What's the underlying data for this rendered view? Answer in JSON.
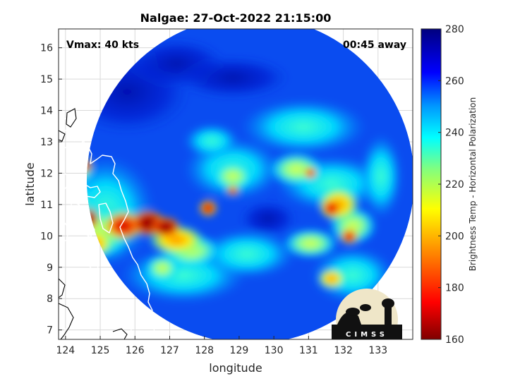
{
  "title": "Nalgae: 27-Oct-2022 21:15:00",
  "vmax_label": "Vmax: 40 kts",
  "time_away_label": "00:45 away",
  "xlabel": "longitude",
  "ylabel": "latitude",
  "colorbar_label": "Brightness Temp - Horizontal Polarization",
  "logo_text": "CIMSS",
  "chart_data": {
    "type": "heatmap",
    "x_ticks": [
      "124",
      "125",
      "126",
      "127",
      "128",
      "129",
      "130",
      "131",
      "132",
      "133"
    ],
    "y_ticks": [
      "7",
      "8",
      "9",
      "10",
      "11",
      "12",
      "13",
      "14",
      "15",
      "16"
    ],
    "xlim": [
      123.8,
      134.0
    ],
    "ylim": [
      6.7,
      16.6
    ],
    "colorbar": {
      "ticks": [
        "160",
        "180",
        "200",
        "220",
        "240",
        "260",
        "280"
      ],
      "range": [
        160,
        280
      ],
      "colormap": "jet"
    },
    "swath_background_value": 262,
    "features": [
      {
        "lon": 126.2,
        "lat": 10.4,
        "value": 165
      },
      {
        "lon": 126.7,
        "lat": 10.3,
        "value": 168
      },
      {
        "lon": 124.6,
        "lat": 10.6,
        "value": 175
      },
      {
        "lon": 124.4,
        "lat": 12.3,
        "value": 185
      },
      {
        "lon": 128.1,
        "lat": 11.0,
        "value": 182
      },
      {
        "lon": 131.7,
        "lat": 11.0,
        "value": 190
      },
      {
        "lon": 132.4,
        "lat": 10.0,
        "value": 195
      },
      {
        "lon": 130.4,
        "lat": 9.8,
        "value": 215
      },
      {
        "lon": 129.8,
        "lat": 12.0,
        "value": 225
      },
      {
        "lon": 128.6,
        "lat": 12.5,
        "value": 230
      },
      {
        "lon": 131.2,
        "lat": 12.4,
        "value": 225
      },
      {
        "lon": 127.4,
        "lat": 9.6,
        "value": 225
      }
    ]
  }
}
